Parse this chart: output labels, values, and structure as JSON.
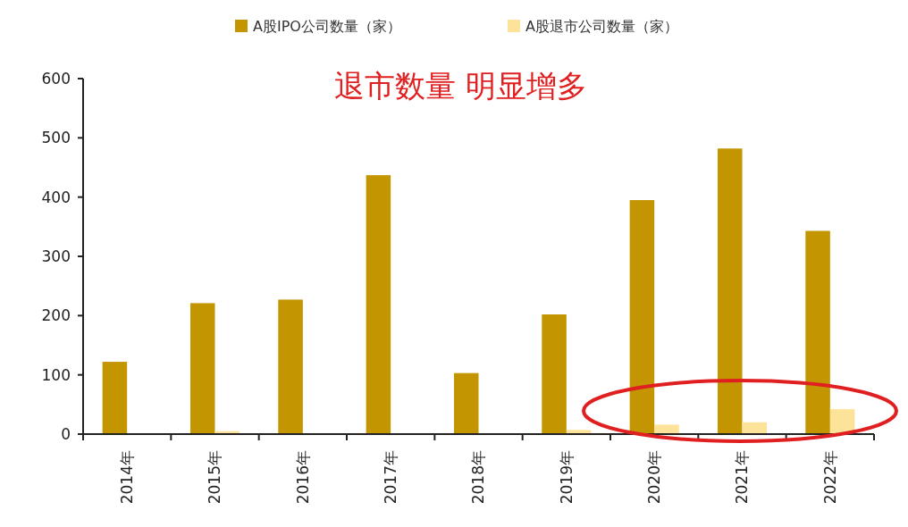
{
  "chart_data": {
    "type": "bar",
    "title": "退市数量 明显增多",
    "categories": [
      "2014年",
      "2015年",
      "2016年",
      "2017年",
      "2018年",
      "2019年",
      "2020年",
      "2021年",
      "2022年"
    ],
    "series": [
      {
        "name": "A股IPO公司数量（家）",
        "color": "#c39500",
        "values": [
          122,
          221,
          227,
          437,
          103,
          202,
          395,
          482,
          343
        ]
      },
      {
        "name": "A股退市公司数量（家）",
        "color": "#fde39a",
        "values": [
          0,
          5,
          0,
          null,
          null,
          7,
          16,
          20,
          42
        ]
      }
    ],
    "ylim": [
      0,
      600
    ],
    "yticks": [
      0,
      100,
      200,
      300,
      400,
      500,
      600
    ],
    "grid": false,
    "legend": "top"
  }
}
